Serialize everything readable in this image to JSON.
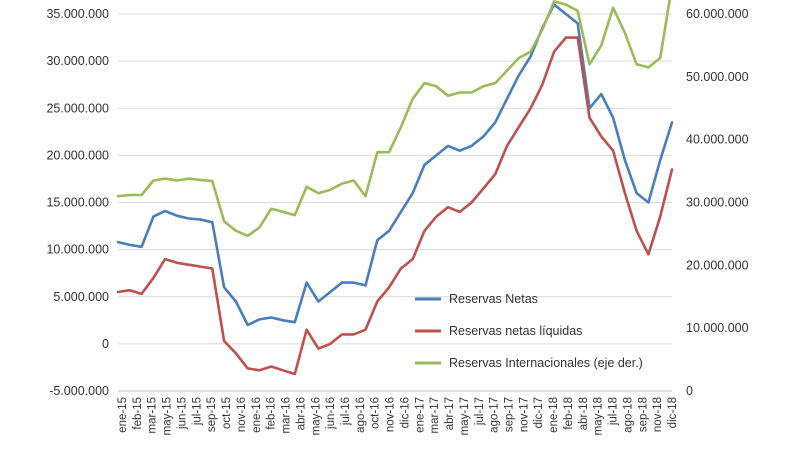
{
  "chart_data": {
    "type": "line",
    "title": "",
    "y_left": {
      "min": -5000000,
      "max": 35000000,
      "step": 5000000,
      "tick_labels": [
        "-5.000.000",
        "0",
        "5.000.000",
        "10.000.000",
        "15.000.000",
        "20.000.000",
        "25.000.000",
        "30.000.000",
        "35.000.000"
      ]
    },
    "y_right": {
      "min": 0,
      "max": 60000000,
      "step": 10000000,
      "tick_labels": [
        "0",
        "10.000.000",
        "20.000.000",
        "30.000.000",
        "40.000.000",
        "50.000.000",
        "60.000.000"
      ]
    },
    "x": [
      "2-ene-15",
      "2-feb-15",
      "2-mar-15",
      "2-abr-15",
      "2-may-15",
      "2-jun-15",
      "2-jul-15",
      "2-ago-15",
      "2-sep-15",
      "2-oct-15",
      "2-nov-15",
      "2-dic-15",
      "2-ene-16",
      "2-feb-16",
      "2-mar-16",
      "2-abr-16",
      "2-may-16",
      "2-jun-16",
      "2-jul-16",
      "2-ago-16",
      "2-sep-16",
      "2-oct-16",
      "2-nov-16",
      "2-dic-16",
      "2-ene-17",
      "2-feb-17",
      "2-mar-17",
      "2-abr-17",
      "2-may-17",
      "2-jun-17",
      "2-jul-17",
      "2-ago-17",
      "2-sep-17",
      "2-oct-17",
      "2-nov-17",
      "2-dic-17",
      "2-ene-18",
      "2-feb-18",
      "2-mar-18",
      "2-abr-18",
      "2-may-18",
      "2-jun-18",
      "2-jul-18",
      "2-ago-18",
      "2-sep-18",
      "2-oct-18",
      "2-nov-18",
      "2-dic-18"
    ],
    "x_tick_labels": [
      "ene-15",
      "feb-15",
      "mar-15",
      "may-15",
      "jun-15",
      "jul-15",
      "sep-15",
      "oct-15",
      "nov-16",
      "ene-16",
      "feb-16",
      "mar-16",
      "abr-16",
      "may-16",
      "jun-16",
      "jul-16",
      "ago-16",
      "oct-16",
      "nov-16",
      "dic-16",
      "ene-17",
      "mar-17",
      "abr-17",
      "may-17",
      "jul-17",
      "ago-17",
      "sep-17",
      "nov-17",
      "dic-17",
      "ene-18",
      "feb-18",
      "abr-18",
      "may-18",
      "jul-18",
      "ago-18",
      "sep-18",
      "nov-18",
      "dic-18"
    ],
    "series": [
      {
        "name": "Reservas Netas",
        "color": "#4a7ebb",
        "axis": "left",
        "values": [
          10800000,
          10500000,
          10300000,
          13500000,
          14100000,
          13600000,
          13300000,
          13200000,
          12900000,
          6000000,
          4500000,
          2000000,
          2600000,
          2800000,
          2500000,
          2300000,
          6500000,
          4500000,
          5500000,
          6500000,
          6500000,
          6200000,
          11000000,
          12000000,
          14000000,
          16000000,
          19000000,
          20000000,
          21000000,
          20500000,
          21000000,
          22000000,
          23500000,
          26000000,
          28500000,
          30500000,
          33500000,
          36000000,
          35000000,
          34000000,
          25000000,
          26500000,
          24000000,
          19500000,
          16000000,
          15000000,
          19500000,
          23500000
        ]
      },
      {
        "name": "Reservas netas líquidas",
        "color": "#c0504d",
        "axis": "left",
        "values": [
          5500000,
          5700000,
          5300000,
          7000000,
          9000000,
          8600000,
          8400000,
          8200000,
          8000000,
          300000,
          -1000000,
          -2600000,
          -2800000,
          -2400000,
          -2800000,
          -3200000,
          1500000,
          -500000,
          0,
          1000000,
          1000000,
          1500000,
          4500000,
          6000000,
          8000000,
          9000000,
          12000000,
          13500000,
          14500000,
          14000000,
          15000000,
          16500000,
          18000000,
          21000000,
          23000000,
          25000000,
          27500000,
          31000000,
          32500000,
          32500000,
          24000000,
          22000000,
          20500000,
          16000000,
          12000000,
          9500000,
          13500000,
          18500000
        ]
      },
      {
        "name": "Reservas Internacionales (eje der.)",
        "color": "#9bbb59",
        "axis": "right",
        "values": [
          31000000,
          31200000,
          31200000,
          33500000,
          33800000,
          33500000,
          33800000,
          33600000,
          33400000,
          27000000,
          25500000,
          24700000,
          26000000,
          29000000,
          28500000,
          28000000,
          32500000,
          31500000,
          32000000,
          33000000,
          33500000,
          31000000,
          38000000,
          38000000,
          42000000,
          46500000,
          49000000,
          48500000,
          47000000,
          47500000,
          47500000,
          48500000,
          49000000,
          51000000,
          53000000,
          54000000,
          57500000,
          62000000,
          61500000,
          60500000,
          52000000,
          55000000,
          61000000,
          57000000,
          52000000,
          51500000,
          53000000,
          64500000
        ]
      }
    ],
    "legend": {
      "placement": "bottom-center"
    },
    "grid": true
  }
}
